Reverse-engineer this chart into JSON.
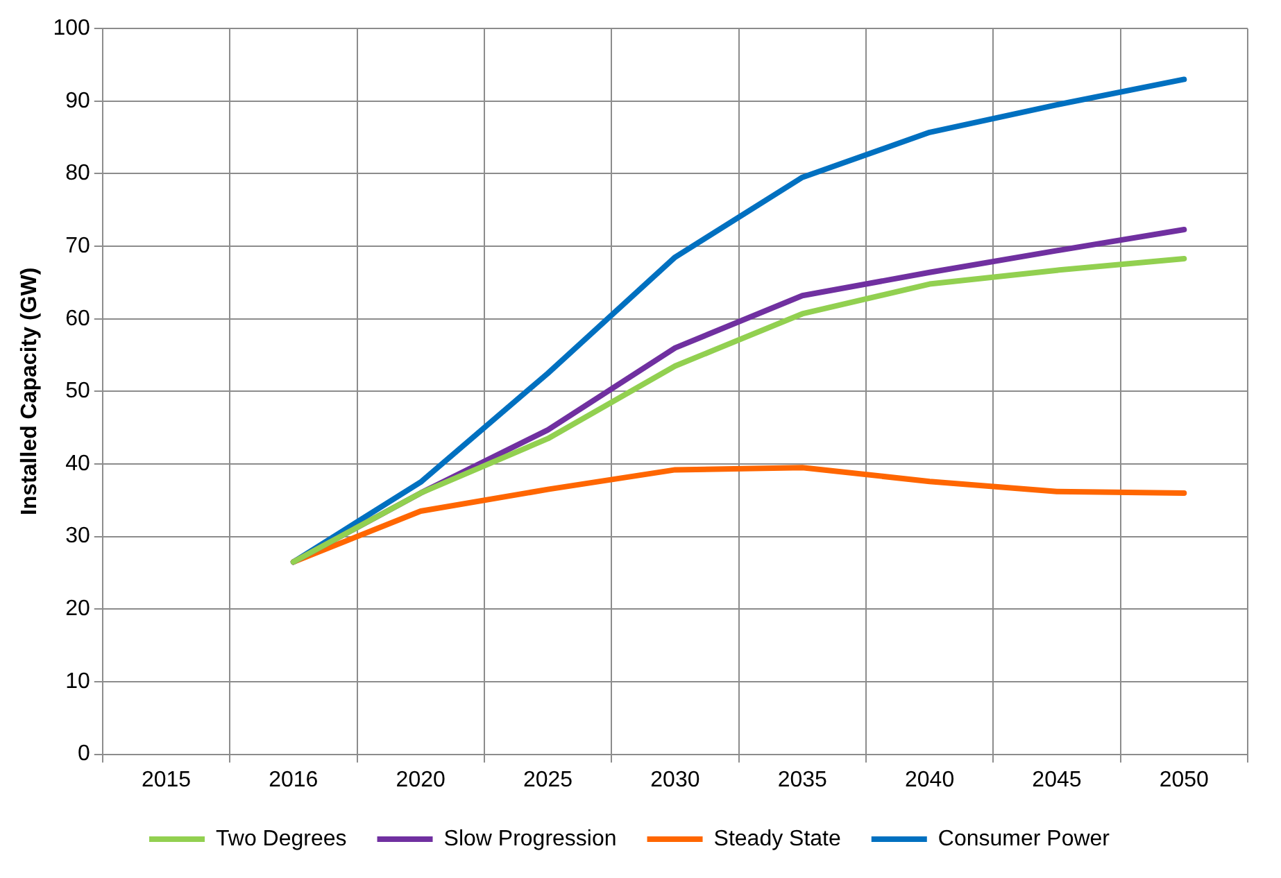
{
  "chart_data": {
    "type": "line",
    "ylabel": "Installed Capacity (GW)",
    "categories": [
      "2015",
      "2016",
      "2020",
      "2025",
      "2030",
      "2035",
      "2040",
      "2045",
      "2050"
    ],
    "series": [
      {
        "name": "Two Degrees",
        "color": "#92d050",
        "values": [
          null,
          26.5,
          36,
          43.5,
          53.5,
          60.7,
          64.8,
          66.7,
          68.3
        ]
      },
      {
        "name": "Slow Progression",
        "color": "#7030a0",
        "values": [
          null,
          26.5,
          36,
          44.7,
          56,
          63.2,
          66.4,
          69.4,
          72.3
        ]
      },
      {
        "name": "Steady State",
        "color": "#ff6600",
        "values": [
          null,
          26.5,
          33.5,
          36.5,
          39.2,
          39.5,
          37.6,
          36.2,
          36
        ]
      },
      {
        "name": "Consumer Power",
        "color": "#0070c0",
        "values": [
          null,
          26.5,
          37.5,
          52.5,
          68.5,
          79.5,
          85.7,
          89.5,
          93
        ]
      }
    ],
    "ylim": [
      0,
      100
    ],
    "yticks": [
      0,
      10,
      20,
      30,
      40,
      50,
      60,
      70,
      80,
      90,
      100
    ],
    "grid": true,
    "legend": "bottom",
    "marker": "none",
    "line_style": "solid"
  }
}
